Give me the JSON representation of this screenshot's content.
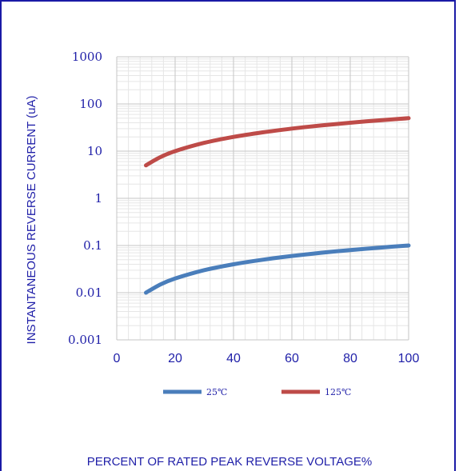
{
  "chart_data": {
    "type": "line",
    "title": "",
    "xlabel": "PERCENT OF RATED PEAK REVERSE VOLTAGE%",
    "ylabel": "INSTANTANEOUS REVERSE CURRENT (uA)",
    "xlim": [
      0,
      100
    ],
    "ylim": [
      0.001,
      1000
    ],
    "yscale": "log",
    "xticks": [
      "0",
      "20",
      "40",
      "60",
      "80",
      "100"
    ],
    "yticks": [
      "0.001",
      "0.01",
      "0.1",
      "1",
      "10",
      "100",
      "1000"
    ],
    "grid": true,
    "legend": "bottom",
    "series": [
      {
        "name": "25℃",
        "color": "#4a7ebb",
        "x": [
          10,
          15,
          20,
          30,
          40,
          50,
          60,
          70,
          80,
          90,
          100
        ],
        "y": [
          0.01,
          0.015,
          0.02,
          0.03,
          0.04,
          0.05,
          0.06,
          0.07,
          0.08,
          0.09,
          0.1
        ]
      },
      {
        "name": "125℃",
        "color": "#be4b48",
        "x": [
          10,
          15,
          20,
          30,
          40,
          50,
          60,
          70,
          80,
          90,
          100
        ],
        "y": [
          5,
          7.5,
          10,
          15,
          20,
          25,
          30,
          35,
          40,
          45,
          50
        ]
      }
    ]
  }
}
